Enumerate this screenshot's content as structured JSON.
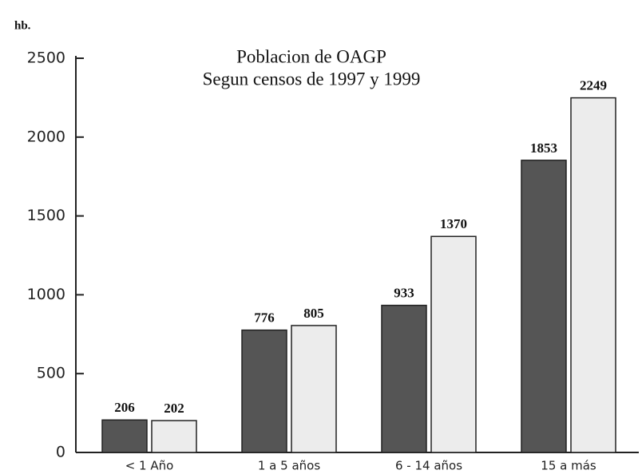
{
  "chart_data": {
    "type": "bar",
    "title": "Poblacion de OAGP",
    "subtitle": "Segun censos de 1997 y 1999",
    "y_label": "hb.",
    "categories": [
      "< 1 Año",
      "1 a 5 años",
      "6 - 14 años",
      "15 a más"
    ],
    "series": [
      {
        "color": "#555555",
        "values": [
          206,
          776,
          933,
          1853
        ]
      },
      {
        "color": "#ececec",
        "values": [
          202,
          805,
          1370,
          2249
        ]
      }
    ],
    "ylim": [
      0,
      2500
    ],
    "yticks": [
      0,
      500,
      1000,
      1500,
      2000,
      2500
    ]
  }
}
